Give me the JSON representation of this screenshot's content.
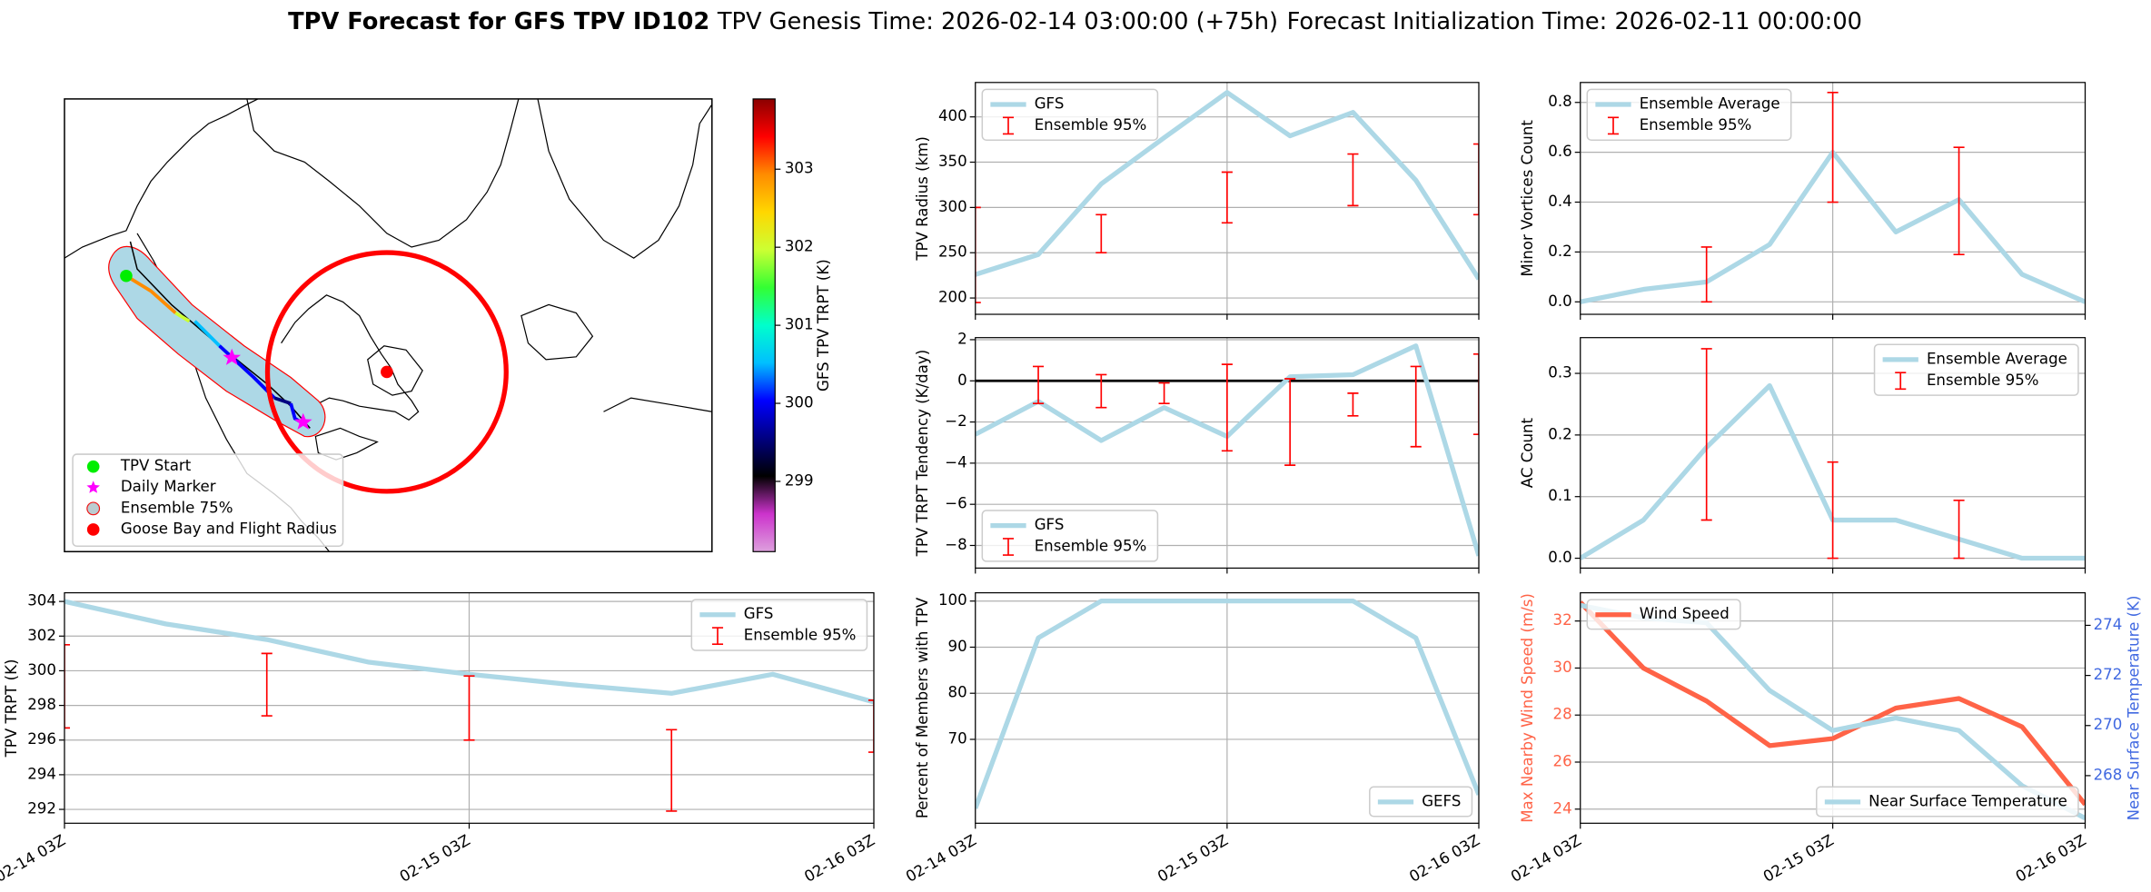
{
  "title": "TPV Forecast for GFS TPV ID102",
  "genesis": "TPV Genesis Time: 2026-02-14 03:00:00 (+75h)",
  "initialization": "Forecast Initialization Time: 2026-02-11 00:00:00",
  "chart_data": [
    {
      "type": "map",
      "legend": [
        {
          "name": "TPV Start",
          "color": "#00ee00"
        },
        {
          "name": "Daily Marker",
          "color": "#ff00ff"
        },
        {
          "name": "Ensemble 75%",
          "color": "#add8e6"
        },
        {
          "name": "Goose Bay and Flight Radius",
          "color": "#ff0000"
        }
      ],
      "colorbar": {
        "label": "GFS TPV TRPT (K)",
        "lim": [
          298.1,
          303.9
        ],
        "ticks": [
          299,
          300,
          301,
          302,
          303
        ],
        "colormap": [
          "#dda0dd",
          "#cc33cc",
          "#000000",
          "#000080",
          "#0000ff",
          "#00bfff",
          "#00ffcc",
          "#33ff33",
          "#ccff33",
          "#ffd700",
          "#ff8c00",
          "#ff0000",
          "#8b0000"
        ]
      }
    },
    {
      "type": "line",
      "ylabel": "TPV TRPT (K)",
      "categories": [
        "02-14 03Z",
        null,
        null,
        null,
        "02-15 03Z",
        null,
        null,
        null,
        "02-16 03Z"
      ],
      "xticklabels": true,
      "ylim": [
        291.2,
        304.5
      ],
      "yticks": [
        292,
        294,
        296,
        298,
        300,
        302,
        304
      ],
      "grid": true,
      "legend": "upper right",
      "series": [
        {
          "name": "GFS",
          "color": "#add8e6",
          "values": [
            304.0,
            302.7,
            301.8,
            300.5,
            299.8,
            299.2,
            298.7,
            299.8,
            298.2
          ]
        }
      ],
      "error": {
        "name": "Ensemble 95%",
        "color": "#ff0000",
        "lower": [
          296.7,
          null,
          297.4,
          null,
          296.0,
          null,
          291.9,
          null,
          295.3
        ],
        "upper": [
          301.5,
          null,
          301.0,
          null,
          299.7,
          null,
          296.6,
          null,
          298.3
        ]
      }
    },
    {
      "type": "line",
      "ylabel": "TPV Radius (km)",
      "categories": [
        "02-14 03Z",
        null,
        null,
        null,
        "02-15 03Z",
        null,
        null,
        null,
        "02-16 03Z"
      ],
      "xticklabels": false,
      "ylim": [
        182,
        438
      ],
      "yticks": [
        200,
        250,
        300,
        350,
        400
      ],
      "grid": true,
      "legend": "upper left",
      "series": [
        {
          "name": "GFS",
          "color": "#add8e6",
          "values": [
            226,
            248,
            326,
            377,
            427,
            379,
            405,
            330,
            221
          ]
        }
      ],
      "error": {
        "name": "Ensemble 95%",
        "color": "#ff0000",
        "lower": [
          195,
          null,
          250,
          null,
          283,
          null,
          302,
          null,
          292
        ],
        "upper": [
          300,
          null,
          292,
          null,
          339,
          null,
          359,
          null,
          370
        ]
      }
    },
    {
      "type": "line",
      "ylabel": "TPV TRPT Tendency (K/day)",
      "categories": [
        "02-14 03Z",
        null,
        null,
        null,
        "02-15 03Z",
        null,
        null,
        null,
        "02-16 03Z"
      ],
      "xticklabels": false,
      "ylim": [
        -9.1,
        2.1
      ],
      "yticks": [
        {
          "value": -8,
          "label": "−8"
        },
        {
          "value": -6,
          "label": "−6"
        },
        {
          "value": -4,
          "label": "−4"
        },
        {
          "value": -2,
          "label": "−2"
        },
        0,
        2
      ],
      "grid": true,
      "legend": "lower left",
      "reference_line": 0,
      "series": [
        {
          "name": "GFS",
          "color": "#add8e6",
          "values": [
            -2.6,
            -1.0,
            -2.9,
            -1.3,
            -2.7,
            0.2,
            0.3,
            1.7,
            -8.5
          ]
        }
      ],
      "error": {
        "name": "Ensemble 95%",
        "color": "#ff0000",
        "lower": [
          null,
          -1.1,
          -1.3,
          -1.1,
          -3.4,
          -4.1,
          -1.7,
          -3.2,
          -2.6
        ],
        "upper": [
          null,
          0.7,
          0.3,
          -0.1,
          0.8,
          0.1,
          -0.6,
          0.7,
          1.3
        ]
      }
    },
    {
      "type": "line",
      "ylabel": "Percent of Members with TPV",
      "categories": [
        "02-14 03Z",
        null,
        null,
        null,
        "02-15 03Z",
        null,
        null,
        null,
        "02-16 03Z"
      ],
      "xticklabels": true,
      "ylim": [
        51.8,
        101.8
      ],
      "yticks": [
        70,
        80,
        90,
        100
      ],
      "grid": true,
      "legend": "lower right",
      "series": [
        {
          "name": "GEFS",
          "color": "#add8e6",
          "values": [
            55,
            92,
            100,
            100,
            100,
            100,
            100,
            92,
            58
          ]
        }
      ]
    },
    {
      "type": "line",
      "ylabel": "Minor Vortices Count",
      "categories": [
        "02-14 03Z",
        null,
        null,
        null,
        "02-15 03Z",
        null,
        null,
        null,
        "02-16 03Z"
      ],
      "xticklabels": false,
      "ylim": [
        -0.05,
        0.88
      ],
      "yticks": [
        {
          "value": 0,
          "label": "0.0"
        },
        0.2,
        0.4,
        0.6,
        0.8
      ],
      "grid": true,
      "legend": "upper left",
      "series": [
        {
          "name": "Ensemble Average",
          "color": "#add8e6",
          "values": [
            0,
            0.05,
            0.08,
            0.23,
            0.6,
            0.28,
            0.41,
            0.11,
            0
          ]
        }
      ],
      "error": {
        "name": "Ensemble 95%",
        "color": "#ff0000",
        "lower": [
          null,
          null,
          0,
          null,
          0.4,
          null,
          0.19,
          null,
          null
        ],
        "upper": [
          null,
          null,
          0.22,
          null,
          0.84,
          null,
          0.62,
          null,
          null
        ]
      }
    },
    {
      "type": "line",
      "ylabel": "AC Count",
      "categories": [
        "02-14 03Z",
        null,
        null,
        null,
        "02-15 03Z",
        null,
        null,
        null,
        "02-16 03Z"
      ],
      "xticklabels": false,
      "ylim": [
        -0.016,
        0.358
      ],
      "yticks": [
        {
          "value": 0,
          "label": "0.0"
        },
        0.1,
        0.2,
        0.3
      ],
      "grid": true,
      "legend": "upper right",
      "series": [
        {
          "name": "Ensemble Average",
          "color": "#add8e6",
          "values": [
            0,
            0.062,
            0.18,
            0.28,
            0.062,
            0.062,
            0.031,
            0,
            0
          ]
        }
      ],
      "error": {
        "name": "Ensemble 95%",
        "color": "#ff0000",
        "lower": [
          null,
          null,
          0.062,
          null,
          0,
          null,
          0,
          null,
          null
        ],
        "upper": [
          null,
          null,
          0.34,
          null,
          0.156,
          null,
          0.094,
          null,
          null
        ]
      }
    },
    {
      "type": "line",
      "ylabel": "Max Nearby Wind Speed (m/s)",
      "ylabel_color": "#ff6347",
      "categories": [
        "02-14 03Z",
        null,
        null,
        null,
        "02-15 03Z",
        null,
        null,
        null,
        "02-16 03Z"
      ],
      "xticklabels": true,
      "ylim": [
        23.4,
        33.2
      ],
      "yticks": [
        24,
        26,
        28,
        30,
        32
      ],
      "grid": true,
      "y2label": "Near Surface Temperature (K)",
      "y2label_color": "#4169e1",
      "y2lim": [
        266.1,
        275.3
      ],
      "y2ticks": [
        268,
        270,
        272,
        274
      ],
      "series": [
        {
          "name": "Wind Speed",
          "color": "#ff6347",
          "legend": "upper left",
          "values": [
            32.8,
            30.0,
            28.6,
            26.7,
            27.0,
            28.3,
            28.7,
            27.5,
            24.2
          ]
        },
        {
          "name": "Near Surface Temperature",
          "color": "#add8e6",
          "axis": "y2",
          "legend": "lower right",
          "values": [
            274.8,
            274.3,
            274.1,
            271.4,
            269.8,
            270.3,
            269.8,
            267.6,
            266.3
          ]
        }
      ]
    }
  ]
}
